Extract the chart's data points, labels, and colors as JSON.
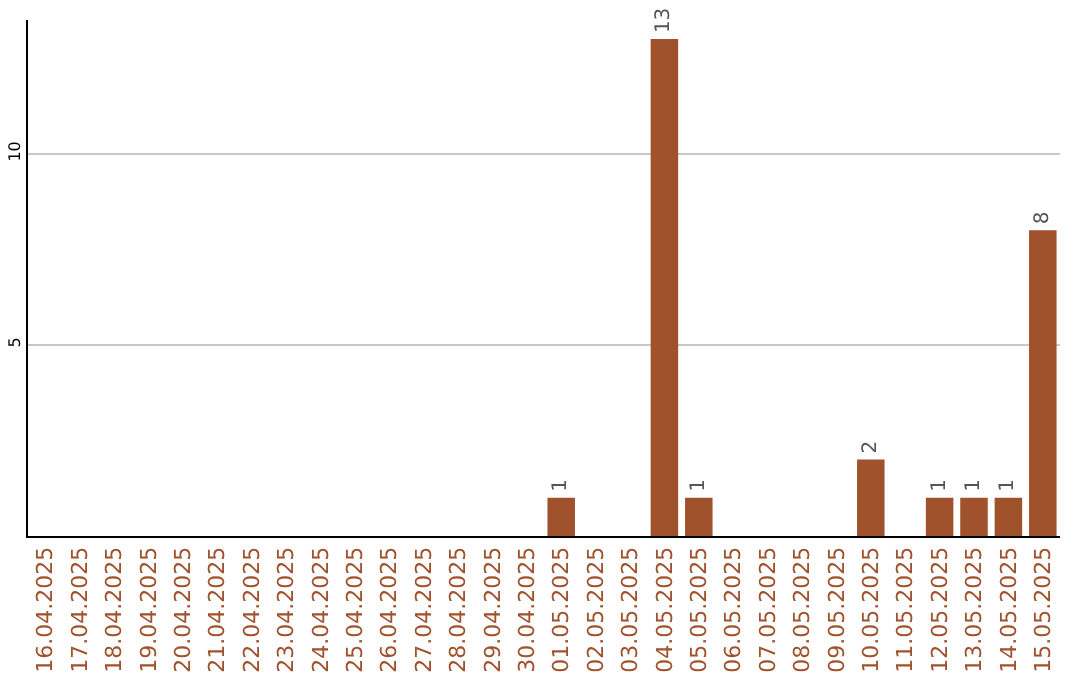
{
  "chart_data": {
    "type": "bar",
    "categories": [
      "16.04.2025",
      "17.04.2025",
      "18.04.2025",
      "19.04.2025",
      "20.04.2025",
      "21.04.2025",
      "22.04.2025",
      "23.04.2025",
      "24.04.2025",
      "25.04.2025",
      "26.04.2025",
      "27.04.2025",
      "28.04.2025",
      "29.04.2025",
      "30.04.2025",
      "01.05.2025",
      "02.05.2025",
      "03.05.2025",
      "04.05.2025",
      "05.05.2025",
      "06.05.2025",
      "07.05.2025",
      "08.05.2025",
      "09.05.2025",
      "10.05.2025",
      "11.05.2025",
      "12.05.2025",
      "13.05.2025",
      "14.05.2025",
      "15.05.2025"
    ],
    "values": [
      0,
      0,
      0,
      0,
      0,
      0,
      0,
      0,
      0,
      0,
      0,
      0,
      0,
      0,
      0,
      1,
      0,
      0,
      13,
      1,
      0,
      0,
      0,
      0,
      2,
      0,
      1,
      1,
      1,
      8
    ],
    "value_labels": [
      null,
      null,
      null,
      null,
      null,
      null,
      null,
      null,
      null,
      null,
      null,
      null,
      null,
      null,
      null,
      "1",
      null,
      null,
      "13",
      "1",
      null,
      null,
      null,
      null,
      "2",
      null,
      "1",
      "1",
      "1",
      "8"
    ],
    "color": "#a0522d",
    "ylim": [
      0,
      13.5
    ],
    "yticks": [
      5,
      10
    ],
    "grid": "y",
    "legend": false
  }
}
